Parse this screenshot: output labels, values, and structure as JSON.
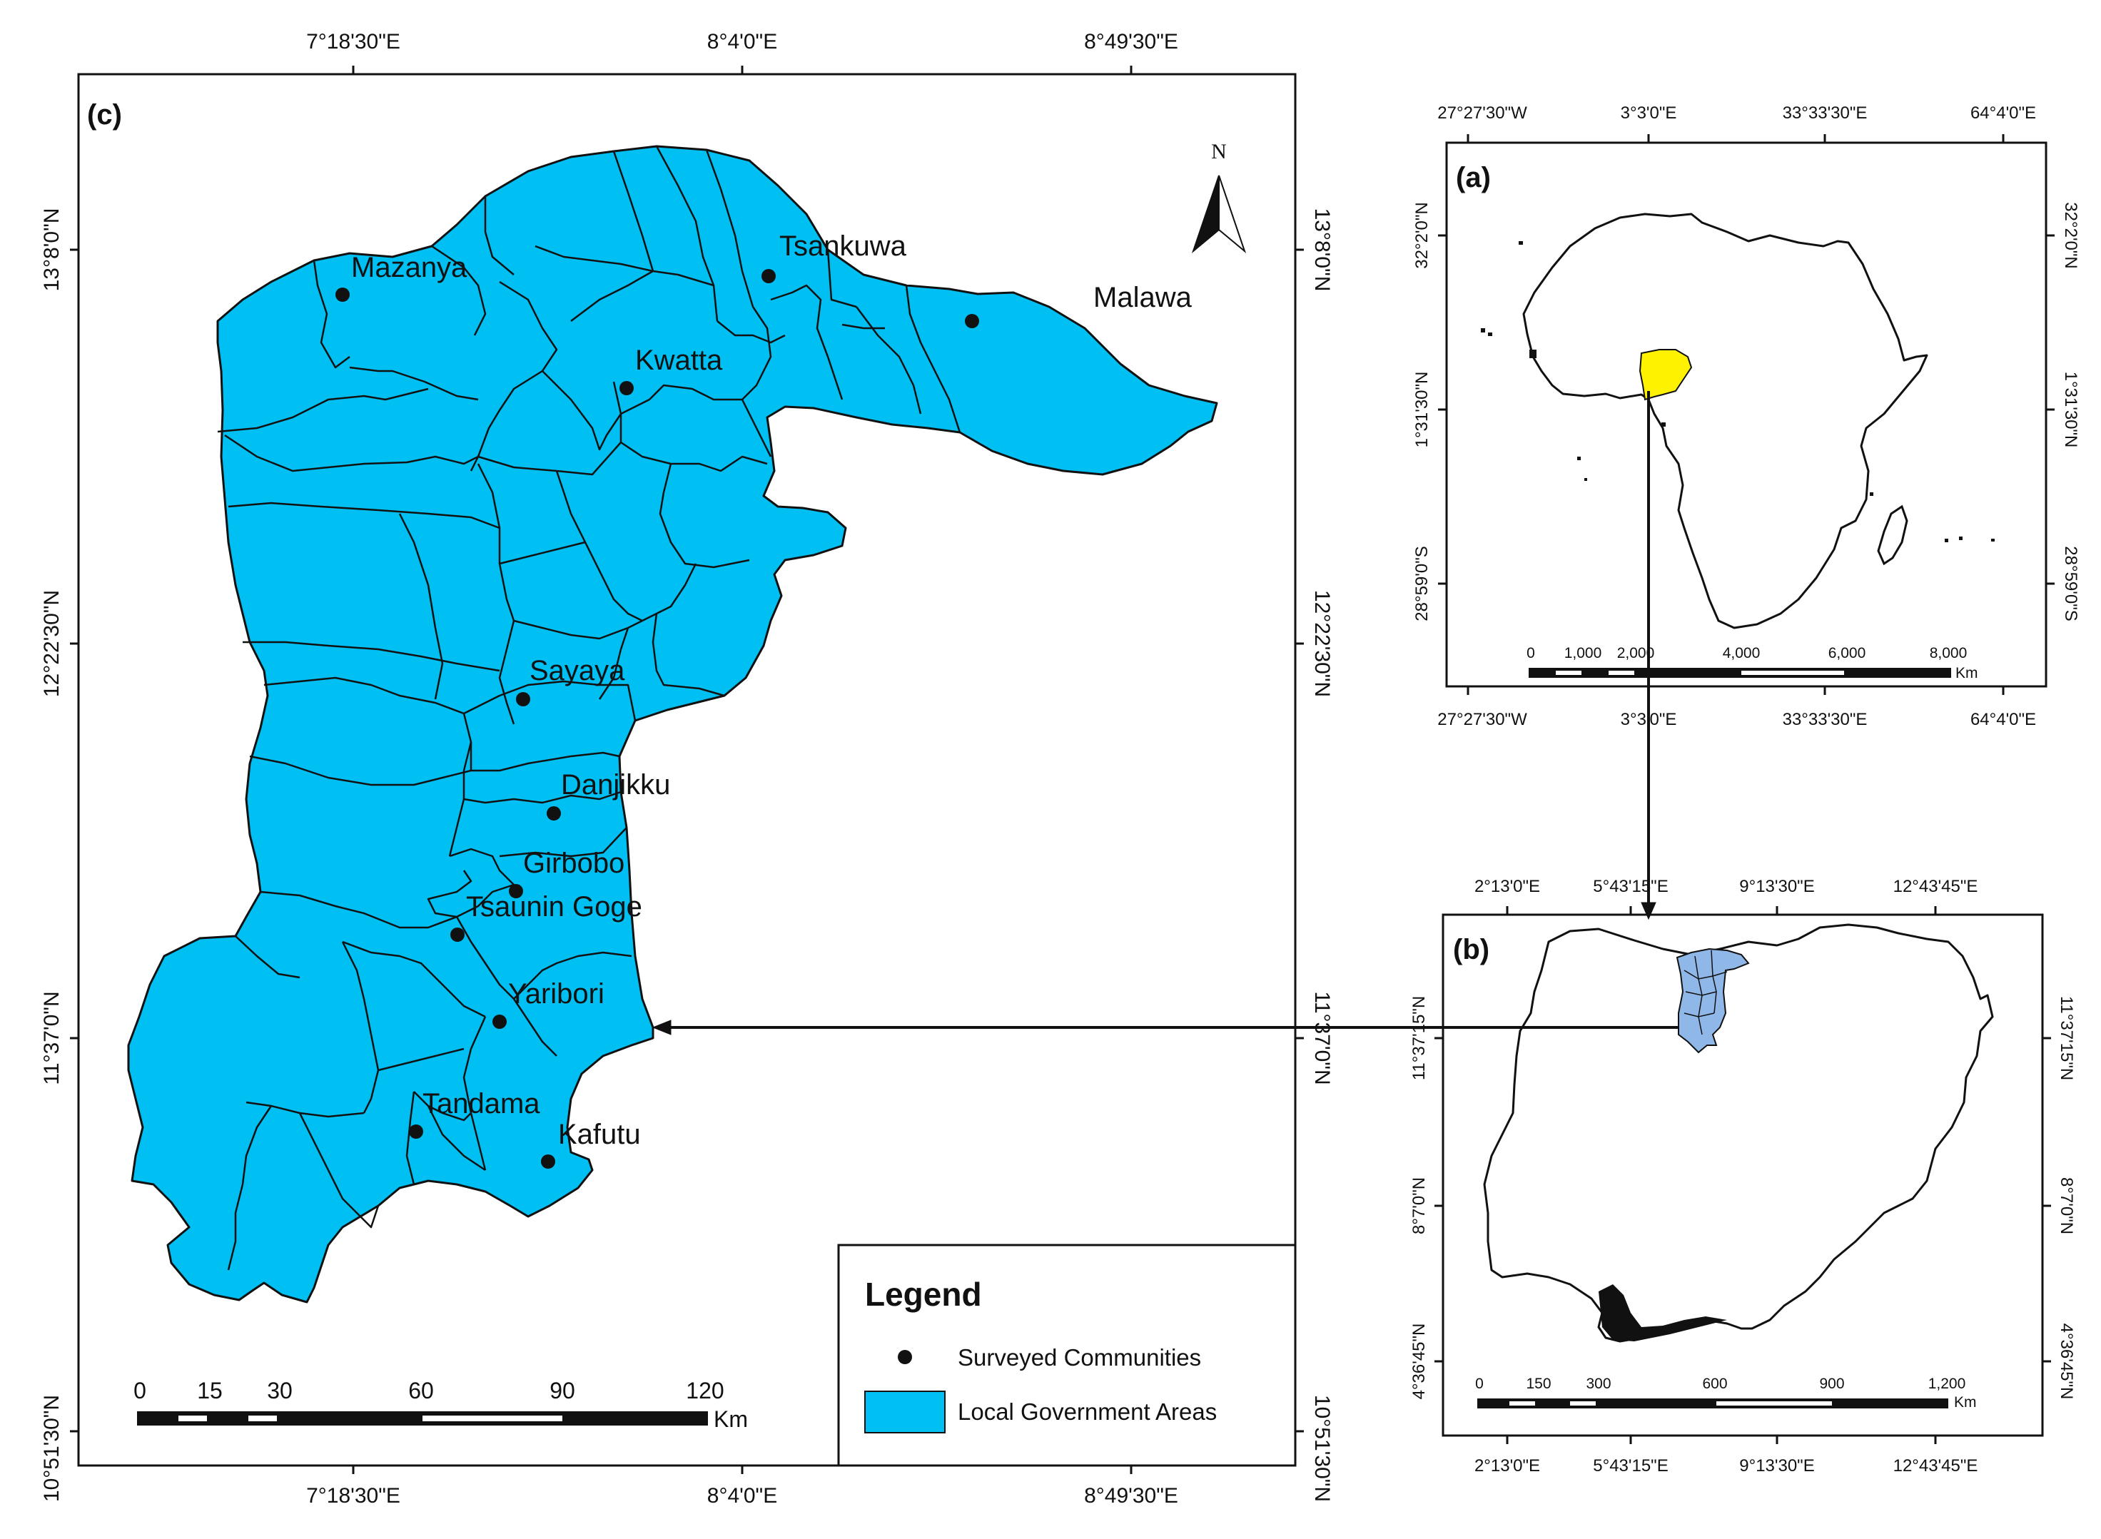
{
  "panel_c": {
    "label": "(c)",
    "top_ticks": [
      "7°18'30\"E",
      "8°4'0\"E",
      "8°49'30\"E"
    ],
    "bottom_ticks": [
      "7°18'30\"E",
      "8°4'0\"E",
      "8°49'30\"E"
    ],
    "left_ticks": [
      "13°8'0\"N",
      "12°22'30\"N",
      "11°37'0\"N",
      "10°51'30\"N"
    ],
    "right_ticks": [
      "13°8'0\"N",
      "12°22'30\"N",
      "11°37'0\"N",
      "10°51'30\"N"
    ],
    "north_label": "N",
    "communities": [
      "Mazanya",
      "Tsankuwa",
      "Malawa",
      "Kwatta",
      "Sayaya",
      "Danjikku",
      "Girbobo",
      "Tsaunin Goge",
      "Yaribori",
      "Tandama",
      "Kafutu"
    ],
    "scalebar": {
      "labels": [
        "0",
        "15",
        "30",
        "60",
        "90",
        "120"
      ],
      "unit": "Km"
    },
    "legend": {
      "title": "Legend",
      "items": [
        "Surveyed Communities",
        "Local Government Areas"
      ]
    }
  },
  "panel_a": {
    "label": "(a)",
    "top_ticks": [
      "27°27'30\"W",
      "3°3'0\"E",
      "33°33'30\"E",
      "64°4'0\"E"
    ],
    "bottom_ticks": [
      "27°27'30\"W",
      "3°3'0\"E",
      "33°33'30\"E",
      "64°4'0\"E"
    ],
    "left_ticks": [
      "32°2'0\"N",
      "1°31'30\"N",
      "28°59'0\"S"
    ],
    "right_ticks": [
      "32°2'0\"N",
      "1°31'30\"N",
      "28°59'0\"S"
    ],
    "scalebar": {
      "labels": [
        "0",
        "1,000",
        "2,000",
        "4,000",
        "6,000",
        "8,000"
      ],
      "unit": "Km"
    }
  },
  "panel_b": {
    "label": "(b)",
    "top_ticks": [
      "2°13'0\"E",
      "5°43'15\"E",
      "9°13'30\"E",
      "12°43'45\"E"
    ],
    "bottom_ticks": [
      "2°13'0\"E",
      "5°43'15\"E",
      "9°13'30\"E",
      "12°43'45\"E"
    ],
    "left_ticks": [
      "11°37'15\"N",
      "8°7'0\"N",
      "4°36'45\"N"
    ],
    "right_ticks": [
      "11°37'15\"N",
      "8°7'0\"N",
      "4°36'45\"N"
    ],
    "scalebar": {
      "labels": [
        "0",
        "150",
        "300",
        "600",
        "900",
        "1,200"
      ],
      "unit": "Km"
    }
  },
  "colors": {
    "lga_fill": "#00BFF3",
    "nigeria_highlight": "#FFF200",
    "study_area_small": "#8FB7E8",
    "lines": "#111111"
  }
}
